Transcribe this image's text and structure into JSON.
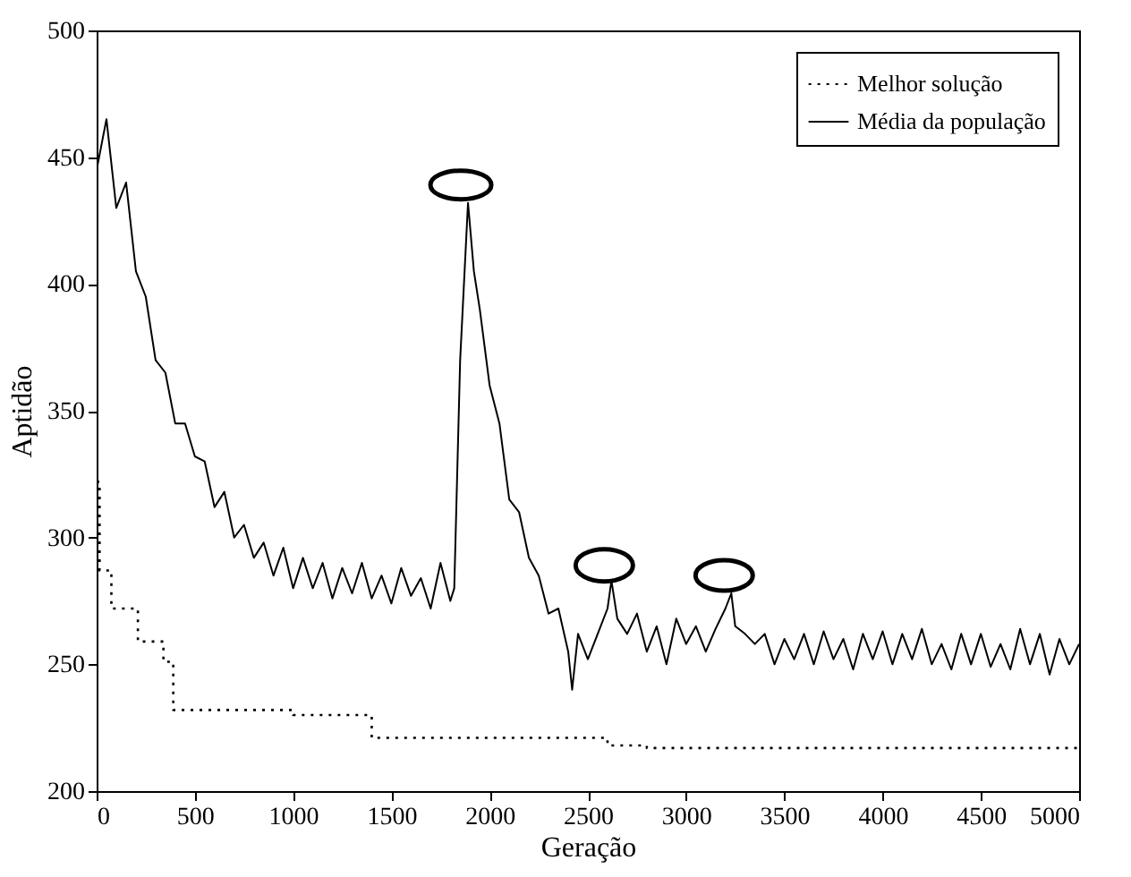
{
  "chart_data": {
    "type": "line",
    "xlabel": "Geração",
    "ylabel": "Aptidão",
    "xlim": [
      0,
      5000
    ],
    "ylim": [
      200,
      500
    ],
    "xticks": [
      0,
      500,
      1000,
      1500,
      2000,
      2500,
      3000,
      3500,
      4000,
      4500,
      5000
    ],
    "yticks": [
      200,
      250,
      300,
      350,
      400,
      450,
      500
    ],
    "grid": false,
    "legend": "top right",
    "series": [
      {
        "name": "Melhor solução",
        "type": "step",
        "color": "#000000",
        "line_style": "dotted",
        "x": [
          0,
          15,
          75,
          210,
          340,
          390,
          1000,
          1400,
          2600,
          2800,
          5000
        ],
        "values": [
          322,
          287,
          272,
          259,
          251,
          232,
          230,
          221,
          218,
          217,
          217
        ]
      },
      {
        "name": "Média da população",
        "type": "line",
        "color": "#000000",
        "line_style": "solid",
        "x": [
          0,
          50,
          100,
          150,
          200,
          250,
          300,
          350,
          400,
          450,
          500,
          550,
          600,
          650,
          700,
          750,
          800,
          850,
          900,
          950,
          1000,
          1050,
          1100,
          1150,
          1200,
          1250,
          1300,
          1350,
          1400,
          1450,
          1500,
          1550,
          1600,
          1650,
          1700,
          1750,
          1800,
          1820,
          1850,
          1890,
          1920,
          1950,
          2000,
          2050,
          2100,
          2150,
          2200,
          2250,
          2300,
          2350,
          2400,
          2420,
          2450,
          2500,
          2550,
          2600,
          2620,
          2650,
          2700,
          2750,
          2800,
          2850,
          2900,
          2950,
          3000,
          3050,
          3100,
          3150,
          3200,
          3230,
          3250,
          3300,
          3350,
          3400,
          3450,
          3500,
          3550,
          3600,
          3650,
          3700,
          3750,
          3800,
          3850,
          3900,
          3950,
          4000,
          4050,
          4100,
          4150,
          4200,
          4250,
          4300,
          4350,
          4400,
          4450,
          4500,
          4550,
          4600,
          4650,
          4700,
          4750,
          4800,
          4850,
          4900,
          4950,
          5000
        ],
        "values": [
          445,
          465,
          430,
          440,
          405,
          395,
          370,
          365,
          345,
          345,
          332,
          330,
          312,
          318,
          300,
          305,
          292,
          298,
          285,
          296,
          280,
          292,
          280,
          290,
          276,
          288,
          278,
          290,
          276,
          285,
          274,
          288,
          277,
          284,
          272,
          290,
          275,
          280,
          370,
          432,
          405,
          390,
          360,
          345,
          315,
          310,
          292,
          285,
          270,
          272,
          255,
          240,
          262,
          252,
          262,
          272,
          283,
          268,
          262,
          270,
          255,
          265,
          250,
          268,
          258,
          265,
          255,
          264,
          272,
          278,
          265,
          262,
          258,
          262,
          250,
          260,
          252,
          262,
          250,
          263,
          252,
          260,
          248,
          262,
          252,
          263,
          250,
          262,
          252,
          264,
          250,
          258,
          248,
          262,
          250,
          262,
          249,
          258,
          248,
          264,
          250,
          262,
          246,
          260,
          250,
          258
        ]
      }
    ]
  }
}
